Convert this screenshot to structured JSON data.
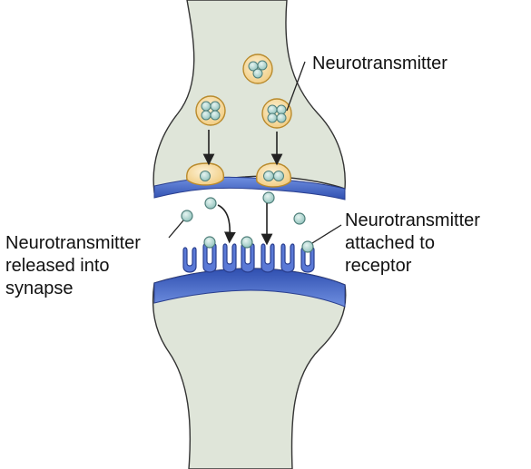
{
  "labels": {
    "neurotransmitter": "Neurotransmitter",
    "released": [
      "Neurotransmitter",
      "released into",
      "synapse"
    ],
    "attached": [
      "Neurotransmitter",
      "attached to",
      "receptor"
    ]
  },
  "colors": {
    "background": "#ffffff",
    "cell_fill": "#dfe5d9",
    "membrane_blue": "#3f63c4",
    "membrane_light": "#8aa3e6",
    "vesicle_fill": "#f4d38e",
    "vesicle_stroke": "#b98a2c",
    "molecule_fill": "#a7cfc9",
    "molecule_stroke": "#4f7f7a",
    "outline": "#333333"
  }
}
